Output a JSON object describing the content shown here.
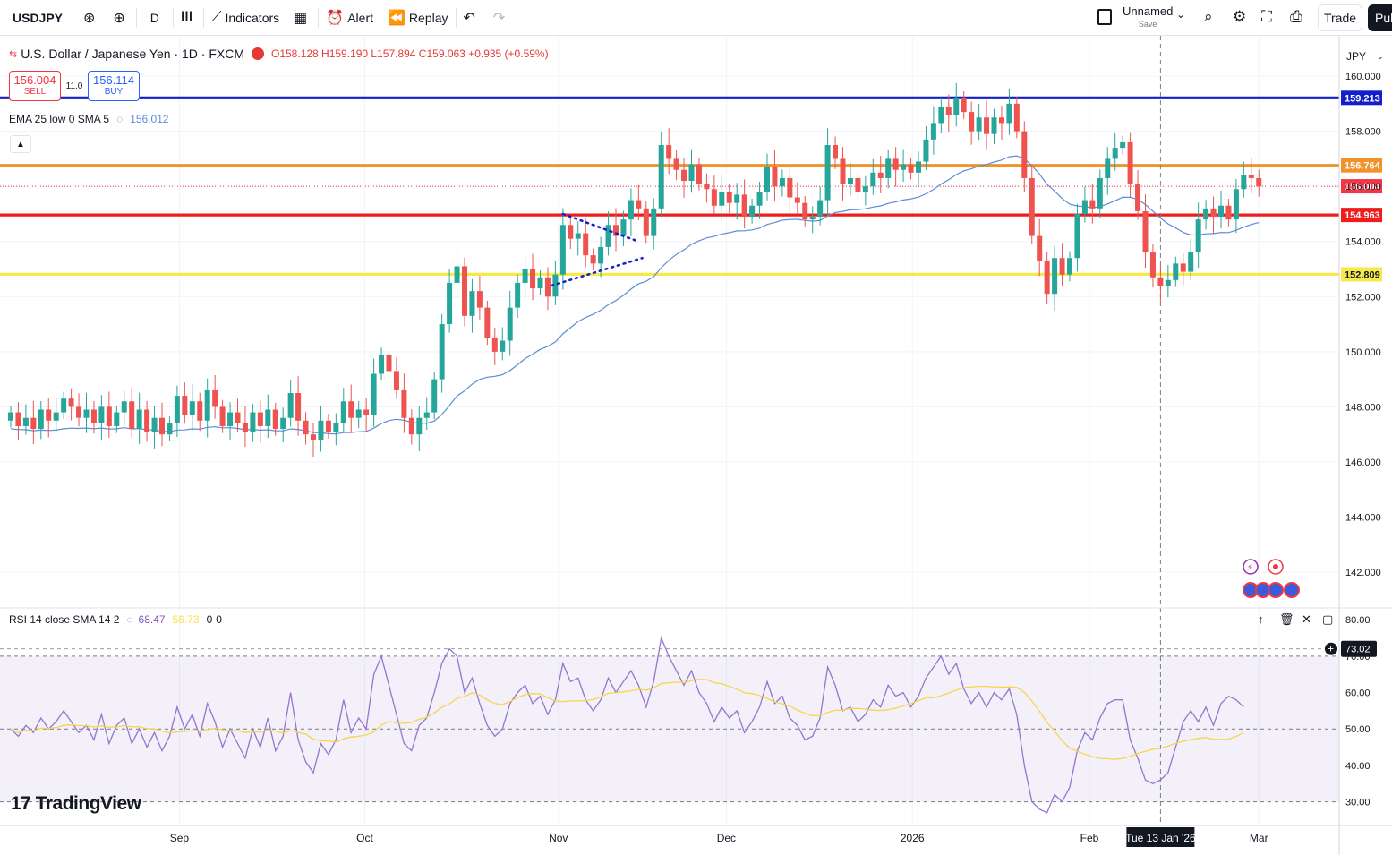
{
  "toolbar": {
    "symbol": "USDJPY",
    "interval": "D",
    "indicators_label": "Indicators",
    "alert_label": "Alert",
    "replay_label": "Replay",
    "layout_name": "Unnamed",
    "layout_sub": "Save",
    "trade_label": "Trade",
    "publish_label": "Pub"
  },
  "legend": {
    "title": "U.S. Dollar / Japanese Yen · 1D · FXCM",
    "ohlc": "O158.128 H159.190 L157.894 C159.063 +0.935 (+0.59%)",
    "sell_price": "156.004",
    "sell_label": "SELL",
    "spread": "11.0",
    "buy_price": "156.114",
    "buy_label": "BUY",
    "ema_label": "EMA 25 low 0 SMA 5",
    "ema_value": "156.012",
    "currency": "JPY"
  },
  "rsi_legend": {
    "label": "RSI 14 close SMA 14 2",
    "rsi_value": "68.47",
    "sma_value": "56.73",
    "extra1": "0",
    "extra2": "0",
    "cursor_value": "73.02"
  },
  "brand": "TradingView",
  "chart_data": {
    "type": "candlestick",
    "title": "U.S. Dollar / Japanese Yen · 1D · FXCM",
    "price_axis": [
      "160.000",
      "158.000",
      "156.000",
      "154.000",
      "152.000",
      "150.000",
      "148.000",
      "146.000",
      "144.000",
      "142.000"
    ],
    "ylim": [
      140.8,
      161.4
    ],
    "rsi_axis": [
      "80.00",
      "70.00",
      "60.00",
      "50.00",
      "40.00",
      "30.00"
    ],
    "rsi_ylim": [
      24,
      83
    ],
    "time_axis": [
      "Sep",
      "Oct",
      "Nov",
      "Dec",
      "2026",
      "Feb",
      "Mar"
    ],
    "crosshair_label": "Tue 13 Jan '26",
    "crosshair_index": 152,
    "horizontal_lines": [
      {
        "price": 159.213,
        "label": "159.213",
        "color": "#1320c9"
      },
      {
        "price": 156.764,
        "label": "156.764",
        "color": "#f0932b"
      },
      {
        "price": 156.004,
        "label": "156.004",
        "color": "#f23645",
        "style": "dotted"
      },
      {
        "price": 154.963,
        "label": "154.963",
        "color": "#ee1d1d"
      },
      {
        "price": 152.809,
        "label": "152.809",
        "color": "#f5e94c"
      }
    ],
    "closes": [
      147.8,
      147.3,
      147.6,
      147.2,
      147.9,
      147.5,
      147.8,
      148.3,
      148.0,
      147.6,
      147.9,
      147.4,
      148.0,
      147.3,
      147.8,
      148.2,
      147.2,
      147.9,
      147.1,
      147.6,
      147.0,
      147.4,
      148.4,
      147.7,
      148.2,
      147.5,
      148.6,
      148.0,
      147.3,
      147.8,
      147.4,
      147.1,
      147.8,
      147.3,
      147.9,
      147.2,
      147.6,
      148.5,
      147.5,
      147.0,
      146.8,
      147.5,
      147.1,
      147.4,
      148.2,
      147.6,
      147.9,
      147.7,
      149.2,
      149.9,
      149.3,
      148.6,
      147.6,
      147.0,
      147.6,
      147.8,
      149.0,
      151.0,
      152.5,
      153.1,
      151.3,
      152.2,
      151.6,
      150.5,
      150.0,
      150.4,
      151.6,
      152.5,
      153.0,
      152.3,
      152.7,
      152.0,
      152.8,
      154.6,
      154.1,
      154.3,
      153.5,
      153.2,
      153.8,
      154.6,
      154.2,
      154.8,
      155.5,
      155.2,
      154.2,
      155.2,
      157.5,
      157.0,
      156.6,
      156.2,
      156.8,
      156.1,
      155.9,
      155.3,
      155.8,
      155.4,
      155.7,
      154.9,
      155.3,
      155.8,
      156.7,
      156.0,
      156.3,
      155.6,
      155.4,
      154.8,
      154.9,
      155.5,
      157.5,
      157.0,
      156.1,
      156.3,
      155.8,
      156.0,
      156.5,
      156.3,
      157.0,
      156.6,
      156.8,
      156.5,
      156.9,
      157.7,
      158.3,
      158.9,
      158.6,
      159.2,
      158.7,
      158.0,
      158.5,
      157.9,
      158.5,
      158.3,
      159.0,
      158.0,
      156.3,
      154.2,
      153.3,
      152.1,
      153.4,
      152.8,
      153.4,
      155.0,
      155.5,
      155.2,
      156.3,
      157.0,
      157.4,
      157.6,
      156.1,
      155.1,
      153.6,
      152.7,
      152.4,
      152.6,
      153.2,
      152.9,
      153.6,
      154.8,
      155.2,
      154.9,
      155.3,
      154.8,
      155.9,
      156.4,
      156.3,
      156.0
    ],
    "rsi": [
      50,
      48,
      51,
      49,
      53,
      50,
      52,
      55,
      52,
      49,
      51,
      47,
      54,
      46,
      51,
      53,
      46,
      50,
      45,
      49,
      44,
      48,
      56,
      50,
      54,
      48,
      57,
      52,
      45,
      50,
      46,
      42,
      50,
      45,
      53,
      44,
      48,
      60,
      47,
      41,
      38,
      46,
      43,
      47,
      58,
      49,
      53,
      50,
      65,
      70,
      62,
      54,
      46,
      44,
      51,
      53,
      60,
      68,
      72,
      70,
      60,
      64,
      57,
      51,
      48,
      50,
      57,
      60,
      62,
      57,
      59,
      54,
      58,
      68,
      63,
      64,
      58,
      55,
      58,
      64,
      60,
      63,
      66,
      62,
      56,
      63,
      75,
      70,
      66,
      62,
      66,
      60,
      57,
      52,
      56,
      53,
      55,
      49,
      52,
      56,
      63,
      57,
      59,
      53,
      51,
      47,
      48,
      53,
      67,
      62,
      55,
      56,
      52,
      54,
      58,
      56,
      62,
      59,
      60,
      56,
      59,
      64,
      67,
      70,
      65,
      68,
      61,
      57,
      60,
      56,
      60,
      58,
      61,
      54,
      40,
      30,
      28,
      27,
      32,
      30,
      34,
      44,
      49,
      47,
      53,
      57,
      58,
      58,
      47,
      42,
      36,
      35,
      36,
      38,
      45,
      52,
      55,
      52,
      56,
      51,
      57,
      59,
      58,
      56
    ]
  }
}
